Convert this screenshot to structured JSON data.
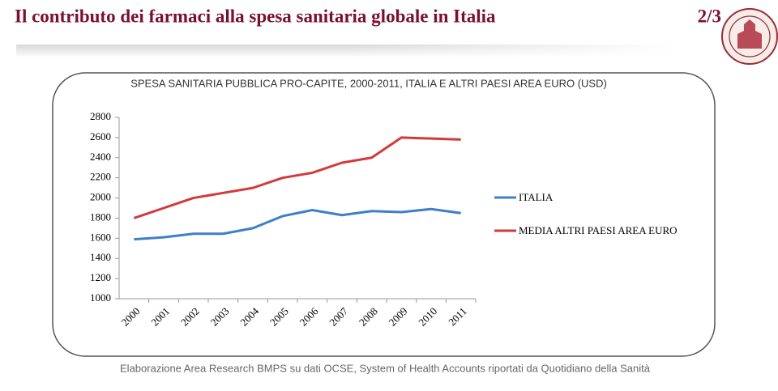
{
  "header": {
    "title": "Il contributo dei farmaci alla spesa sanitaria globale in Italia",
    "page": "2/3"
  },
  "chart_data": {
    "type": "line",
    "title": "SPESA SANITARIA PUBBLICA PRO-CAPITE, 2000-2011, ITALIA E ALTRI PAESI AREA EURO (USD)",
    "categories": [
      "2000",
      "2001",
      "2002",
      "2003",
      "2004",
      "2005",
      "2006",
      "2007",
      "2008",
      "2009",
      "2010",
      "2011"
    ],
    "series": [
      {
        "name": "ITALIA",
        "color": "#3f7fc8",
        "values": [
          1590,
          1610,
          1645,
          1645,
          1700,
          1820,
          1880,
          1830,
          1870,
          1860,
          1890,
          1850
        ]
      },
      {
        "name": "MEDIA ALTRI PAESI AREA EURO",
        "color": "#d23b3b",
        "values": [
          1800,
          1900,
          2000,
          2050,
          2100,
          2200,
          2250,
          2350,
          2400,
          2600,
          2590,
          2580
        ]
      }
    ],
    "ylim": [
      1000,
      2800
    ],
    "yticks": [
      1000,
      1200,
      1400,
      1600,
      1800,
      2000,
      2200,
      2400,
      2600,
      2800
    ],
    "grid": false,
    "legend": "right"
  },
  "footer": {
    "source": "Elaborazione Area Research BMPS  su dati  OCSE, System of Health Accounts riportati da Quotidiano della Sanità"
  }
}
